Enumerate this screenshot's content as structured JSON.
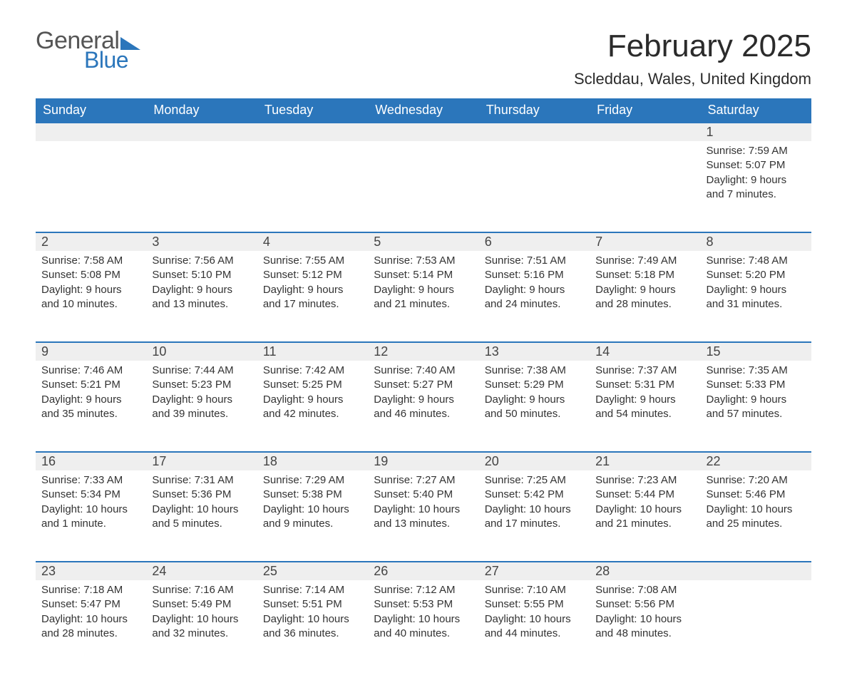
{
  "logo": {
    "word1": "General",
    "word2": "Blue"
  },
  "title": "February 2025",
  "location": "Scleddau, Wales, United Kingdom",
  "colors": {
    "header_bg": "#2b76bb",
    "header_text": "#ffffff",
    "daynum_bg": "#efefef",
    "row_border": "#2b76bb",
    "body_text": "#333333",
    "title_text": "#2b2b2b",
    "background": "#ffffff"
  },
  "fonts": {
    "title_size_pt": 33,
    "location_size_pt": 17,
    "header_size_pt": 14,
    "daynum_size_pt": 14,
    "cell_size_pt": 11
  },
  "day_headers": [
    "Sunday",
    "Monday",
    "Tuesday",
    "Wednesday",
    "Thursday",
    "Friday",
    "Saturday"
  ],
  "weeks": [
    [
      null,
      null,
      null,
      null,
      null,
      null,
      {
        "n": "1",
        "sunrise": "Sunrise: 7:59 AM",
        "sunset": "Sunset: 5:07 PM",
        "day1": "Daylight: 9 hours",
        "day2": "and 7 minutes."
      }
    ],
    [
      {
        "n": "2",
        "sunrise": "Sunrise: 7:58 AM",
        "sunset": "Sunset: 5:08 PM",
        "day1": "Daylight: 9 hours",
        "day2": "and 10 minutes."
      },
      {
        "n": "3",
        "sunrise": "Sunrise: 7:56 AM",
        "sunset": "Sunset: 5:10 PM",
        "day1": "Daylight: 9 hours",
        "day2": "and 13 minutes."
      },
      {
        "n": "4",
        "sunrise": "Sunrise: 7:55 AM",
        "sunset": "Sunset: 5:12 PM",
        "day1": "Daylight: 9 hours",
        "day2": "and 17 minutes."
      },
      {
        "n": "5",
        "sunrise": "Sunrise: 7:53 AM",
        "sunset": "Sunset: 5:14 PM",
        "day1": "Daylight: 9 hours",
        "day2": "and 21 minutes."
      },
      {
        "n": "6",
        "sunrise": "Sunrise: 7:51 AM",
        "sunset": "Sunset: 5:16 PM",
        "day1": "Daylight: 9 hours",
        "day2": "and 24 minutes."
      },
      {
        "n": "7",
        "sunrise": "Sunrise: 7:49 AM",
        "sunset": "Sunset: 5:18 PM",
        "day1": "Daylight: 9 hours",
        "day2": "and 28 minutes."
      },
      {
        "n": "8",
        "sunrise": "Sunrise: 7:48 AM",
        "sunset": "Sunset: 5:20 PM",
        "day1": "Daylight: 9 hours",
        "day2": "and 31 minutes."
      }
    ],
    [
      {
        "n": "9",
        "sunrise": "Sunrise: 7:46 AM",
        "sunset": "Sunset: 5:21 PM",
        "day1": "Daylight: 9 hours",
        "day2": "and 35 minutes."
      },
      {
        "n": "10",
        "sunrise": "Sunrise: 7:44 AM",
        "sunset": "Sunset: 5:23 PM",
        "day1": "Daylight: 9 hours",
        "day2": "and 39 minutes."
      },
      {
        "n": "11",
        "sunrise": "Sunrise: 7:42 AM",
        "sunset": "Sunset: 5:25 PM",
        "day1": "Daylight: 9 hours",
        "day2": "and 42 minutes."
      },
      {
        "n": "12",
        "sunrise": "Sunrise: 7:40 AM",
        "sunset": "Sunset: 5:27 PM",
        "day1": "Daylight: 9 hours",
        "day2": "and 46 minutes."
      },
      {
        "n": "13",
        "sunrise": "Sunrise: 7:38 AM",
        "sunset": "Sunset: 5:29 PM",
        "day1": "Daylight: 9 hours",
        "day2": "and 50 minutes."
      },
      {
        "n": "14",
        "sunrise": "Sunrise: 7:37 AM",
        "sunset": "Sunset: 5:31 PM",
        "day1": "Daylight: 9 hours",
        "day2": "and 54 minutes."
      },
      {
        "n": "15",
        "sunrise": "Sunrise: 7:35 AM",
        "sunset": "Sunset: 5:33 PM",
        "day1": "Daylight: 9 hours",
        "day2": "and 57 minutes."
      }
    ],
    [
      {
        "n": "16",
        "sunrise": "Sunrise: 7:33 AM",
        "sunset": "Sunset: 5:34 PM",
        "day1": "Daylight: 10 hours",
        "day2": "and 1 minute."
      },
      {
        "n": "17",
        "sunrise": "Sunrise: 7:31 AM",
        "sunset": "Sunset: 5:36 PM",
        "day1": "Daylight: 10 hours",
        "day2": "and 5 minutes."
      },
      {
        "n": "18",
        "sunrise": "Sunrise: 7:29 AM",
        "sunset": "Sunset: 5:38 PM",
        "day1": "Daylight: 10 hours",
        "day2": "and 9 minutes."
      },
      {
        "n": "19",
        "sunrise": "Sunrise: 7:27 AM",
        "sunset": "Sunset: 5:40 PM",
        "day1": "Daylight: 10 hours",
        "day2": "and 13 minutes."
      },
      {
        "n": "20",
        "sunrise": "Sunrise: 7:25 AM",
        "sunset": "Sunset: 5:42 PM",
        "day1": "Daylight: 10 hours",
        "day2": "and 17 minutes."
      },
      {
        "n": "21",
        "sunrise": "Sunrise: 7:23 AM",
        "sunset": "Sunset: 5:44 PM",
        "day1": "Daylight: 10 hours",
        "day2": "and 21 minutes."
      },
      {
        "n": "22",
        "sunrise": "Sunrise: 7:20 AM",
        "sunset": "Sunset: 5:46 PM",
        "day1": "Daylight: 10 hours",
        "day2": "and 25 minutes."
      }
    ],
    [
      {
        "n": "23",
        "sunrise": "Sunrise: 7:18 AM",
        "sunset": "Sunset: 5:47 PM",
        "day1": "Daylight: 10 hours",
        "day2": "and 28 minutes."
      },
      {
        "n": "24",
        "sunrise": "Sunrise: 7:16 AM",
        "sunset": "Sunset: 5:49 PM",
        "day1": "Daylight: 10 hours",
        "day2": "and 32 minutes."
      },
      {
        "n": "25",
        "sunrise": "Sunrise: 7:14 AM",
        "sunset": "Sunset: 5:51 PM",
        "day1": "Daylight: 10 hours",
        "day2": "and 36 minutes."
      },
      {
        "n": "26",
        "sunrise": "Sunrise: 7:12 AM",
        "sunset": "Sunset: 5:53 PM",
        "day1": "Daylight: 10 hours",
        "day2": "and 40 minutes."
      },
      {
        "n": "27",
        "sunrise": "Sunrise: 7:10 AM",
        "sunset": "Sunset: 5:55 PM",
        "day1": "Daylight: 10 hours",
        "day2": "and 44 minutes."
      },
      {
        "n": "28",
        "sunrise": "Sunrise: 7:08 AM",
        "sunset": "Sunset: 5:56 PM",
        "day1": "Daylight: 10 hours",
        "day2": "and 48 minutes."
      },
      null
    ]
  ]
}
